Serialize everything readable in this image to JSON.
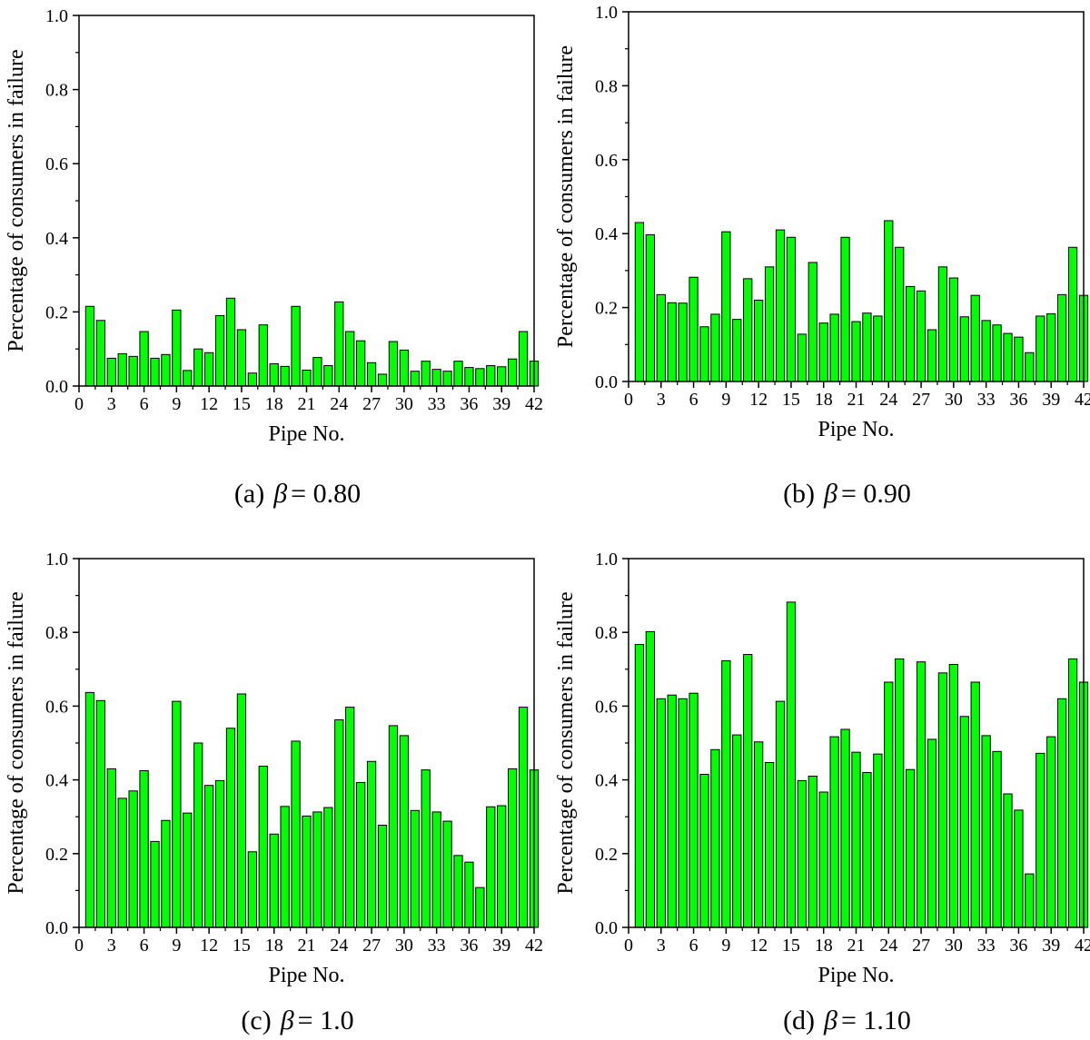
{
  "colors": {
    "bar_fill": "#00ff00",
    "bar_stroke": "#000000",
    "axis": "#000000",
    "background": "#ffffff"
  },
  "chart_data": [
    {
      "panel": "a",
      "type": "bar",
      "caption_prefix": "(a)",
      "caption_symbol": "β",
      "caption_value": "= 0.80",
      "xlabel": "Pipe No.",
      "ylabel": "Percentage of consumers in failure",
      "ylim": [
        0,
        1.0
      ],
      "xlim": [
        0,
        42
      ],
      "yticks": [
        "0.0",
        "0.2",
        "0.4",
        "0.6",
        "0.8",
        "1.0"
      ],
      "xticks": [
        "0",
        "3",
        "6",
        "9",
        "12",
        "15",
        "18",
        "21",
        "24",
        "27",
        "30",
        "33",
        "36",
        "39",
        "42"
      ],
      "grid": false,
      "x": [
        1,
        2,
        3,
        4,
        5,
        6,
        7,
        8,
        9,
        10,
        11,
        12,
        13,
        14,
        15,
        16,
        17,
        18,
        19,
        20,
        21,
        22,
        23,
        24,
        25,
        26,
        27,
        28,
        29,
        30,
        31,
        32,
        33,
        34,
        35,
        36,
        37,
        38,
        39,
        40,
        41,
        42
      ],
      "values": [
        0.215,
        0.177,
        0.075,
        0.087,
        0.08,
        0.147,
        0.075,
        0.085,
        0.205,
        0.042,
        0.1,
        0.09,
        0.19,
        0.237,
        0.152,
        0.035,
        0.165,
        0.06,
        0.053,
        0.215,
        0.043,
        0.077,
        0.055,
        0.227,
        0.147,
        0.122,
        0.063,
        0.032,
        0.12,
        0.097,
        0.04,
        0.067,
        0.045,
        0.04,
        0.067,
        0.05,
        0.047,
        0.055,
        0.052,
        0.073,
        0.147,
        0.067
      ]
    },
    {
      "panel": "b",
      "type": "bar",
      "caption_prefix": "(b)",
      "caption_symbol": "β",
      "caption_value": "= 0.90",
      "xlabel": "Pipe No.",
      "ylabel": "Percentage of consumers in failure",
      "ylim": [
        0,
        1.0
      ],
      "xlim": [
        0,
        42
      ],
      "yticks": [
        "0.0",
        "0.2",
        "0.4",
        "0.6",
        "0.8",
        "1.0"
      ],
      "xticks": [
        "0",
        "3",
        "6",
        "9",
        "12",
        "15",
        "18",
        "21",
        "24",
        "27",
        "30",
        "33",
        "36",
        "39",
        "42"
      ],
      "grid": false,
      "x": [
        1,
        2,
        3,
        4,
        5,
        6,
        7,
        8,
        9,
        10,
        11,
        12,
        13,
        14,
        15,
        16,
        17,
        18,
        19,
        20,
        21,
        22,
        23,
        24,
        25,
        26,
        27,
        28,
        29,
        30,
        31,
        32,
        33,
        34,
        35,
        36,
        37,
        38,
        39,
        40,
        41,
        42
      ],
      "values": [
        0.43,
        0.397,
        0.235,
        0.213,
        0.212,
        0.282,
        0.148,
        0.182,
        0.405,
        0.168,
        0.278,
        0.22,
        0.31,
        0.41,
        0.39,
        0.128,
        0.322,
        0.158,
        0.182,
        0.39,
        0.162,
        0.185,
        0.177,
        0.435,
        0.363,
        0.257,
        0.245,
        0.14,
        0.31,
        0.28,
        0.175,
        0.233,
        0.165,
        0.153,
        0.13,
        0.12,
        0.078,
        0.177,
        0.183,
        0.235,
        0.363,
        0.233
      ]
    },
    {
      "panel": "c",
      "type": "bar",
      "caption_prefix": "(c)",
      "caption_symbol": "β",
      "caption_value": "= 1.0",
      "xlabel": "Pipe No.",
      "ylabel": "Percentage of consumers in failure",
      "ylim": [
        0,
        1.0
      ],
      "xlim": [
        0,
        42
      ],
      "yticks": [
        "0.0",
        "0.2",
        "0.4",
        "0.6",
        "0.8",
        "1.0"
      ],
      "xticks": [
        "0",
        "3",
        "6",
        "9",
        "12",
        "15",
        "18",
        "21",
        "24",
        "27",
        "30",
        "33",
        "36",
        "39",
        "42"
      ],
      "grid": false,
      "x": [
        1,
        2,
        3,
        4,
        5,
        6,
        7,
        8,
        9,
        10,
        11,
        12,
        13,
        14,
        15,
        16,
        17,
        18,
        19,
        20,
        21,
        22,
        23,
        24,
        25,
        26,
        27,
        28,
        29,
        30,
        31,
        32,
        33,
        34,
        35,
        36,
        37,
        38,
        39,
        40,
        41,
        42
      ],
      "values": [
        0.637,
        0.615,
        0.43,
        0.35,
        0.37,
        0.425,
        0.233,
        0.29,
        0.613,
        0.31,
        0.5,
        0.385,
        0.398,
        0.54,
        0.633,
        0.205,
        0.437,
        0.253,
        0.328,
        0.505,
        0.302,
        0.313,
        0.325,
        0.563,
        0.597,
        0.393,
        0.45,
        0.277,
        0.547,
        0.52,
        0.317,
        0.427,
        0.313,
        0.288,
        0.195,
        0.177,
        0.108,
        0.327,
        0.33,
        0.43,
        0.597,
        0.427
      ]
    },
    {
      "panel": "d",
      "type": "bar",
      "caption_prefix": "(d)",
      "caption_symbol": "β",
      "caption_value": "= 1.10",
      "xlabel": "Pipe No.",
      "ylabel": "Percentage of consumers in failure",
      "ylim": [
        0,
        1.0
      ],
      "xlim": [
        0,
        42
      ],
      "yticks": [
        "0.0",
        "0.2",
        "0.4",
        "0.6",
        "0.8",
        "1.0"
      ],
      "xticks": [
        "0",
        "3",
        "6",
        "9",
        "12",
        "15",
        "18",
        "21",
        "24",
        "27",
        "30",
        "33",
        "36",
        "39",
        "42"
      ],
      "grid": false,
      "x": [
        1,
        2,
        3,
        4,
        5,
        6,
        7,
        8,
        9,
        10,
        11,
        12,
        13,
        14,
        15,
        16,
        17,
        18,
        19,
        20,
        21,
        22,
        23,
        24,
        25,
        26,
        27,
        28,
        29,
        30,
        31,
        32,
        33,
        34,
        35,
        36,
        37,
        38,
        39,
        40,
        41,
        42
      ],
      "values": [
        0.767,
        0.802,
        0.62,
        0.63,
        0.62,
        0.635,
        0.415,
        0.482,
        0.723,
        0.522,
        0.74,
        0.503,
        0.447,
        0.613,
        0.882,
        0.398,
        0.41,
        0.367,
        0.517,
        0.537,
        0.475,
        0.42,
        0.47,
        0.665,
        0.728,
        0.428,
        0.72,
        0.51,
        0.69,
        0.713,
        0.572,
        0.665,
        0.52,
        0.477,
        0.362,
        0.318,
        0.145,
        0.472,
        0.517,
        0.62,
        0.728,
        0.665
      ]
    }
  ]
}
